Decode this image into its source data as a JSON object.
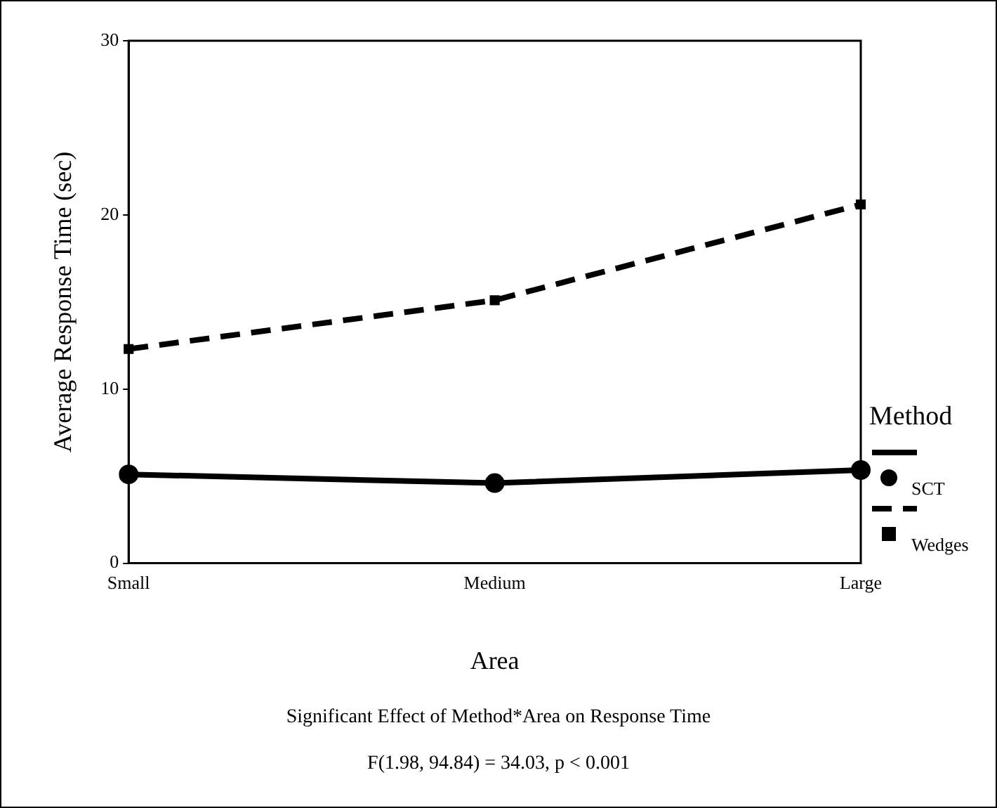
{
  "chart_data": {
    "type": "line",
    "xlabel": "Area",
    "ylabel": "Average Response Time (sec)",
    "legend_title": "Method",
    "legend": "right",
    "grid": false,
    "categories": [
      "Small",
      "Medium",
      "Large"
    ],
    "series": [
      {
        "name": "SCT",
        "color": "#000000",
        "values": [
          5.1,
          4.6,
          5.35
        ],
        "marker": "circle",
        "line_style": "solid"
      },
      {
        "name": "Wedges",
        "color": "#000000",
        "values": [
          12.3,
          15.1,
          20.6
        ],
        "marker": "square",
        "line_style": "dashed"
      }
    ],
    "ylim": [
      0,
      30
    ],
    "yticks": [
      0,
      10,
      20,
      30
    ],
    "annotations": [
      "Significant Effect of Method*Area on Response Time",
      "F(1.98, 94.84) = 34.03, p < 0.001"
    ]
  }
}
